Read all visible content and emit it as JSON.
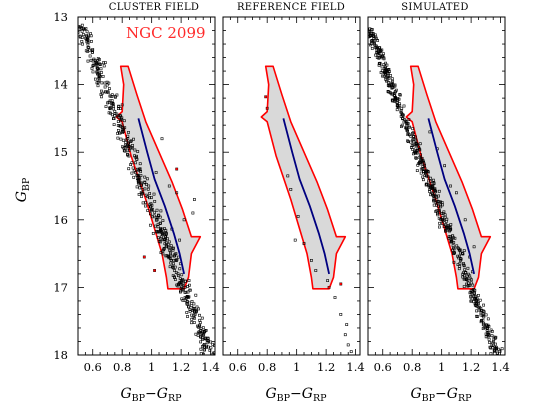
{
  "chart_data": {
    "type": "scatter",
    "ylabel": "G_BP",
    "xlabel": "G_BP−G_RP",
    "xlim": [
      0.5,
      1.43
    ],
    "ylim": [
      18.0,
      13.0
    ],
    "y_inverted": true,
    "xticks": [
      "0.6",
      "0.8",
      "1",
      "1.2",
      "1.4"
    ],
    "yticks": [
      "13",
      "14",
      "15",
      "16",
      "17",
      "18"
    ],
    "annotation": "NGC 2099",
    "region_color": "#ff0000",
    "region_fill": "#d9d9d9",
    "ridge_color": "#000080",
    "points_color": "#000000",
    "red_points_color": "#ff0000",
    "ms_ridge_line": [
      {
        "x": 0.91,
        "y": 14.5
      },
      {
        "x": 0.97,
        "y": 15.0
      },
      {
        "x": 1.02,
        "y": 15.4
      },
      {
        "x": 1.09,
        "y": 15.8
      },
      {
        "x": 1.15,
        "y": 16.2
      },
      {
        "x": 1.19,
        "y": 16.5
      },
      {
        "x": 1.22,
        "y": 16.8
      }
    ],
    "selection_polygon": [
      {
        "x": 0.79,
        "y": 13.73
      },
      {
        "x": 0.84,
        "y": 13.73
      },
      {
        "x": 0.9,
        "y": 14.15
      },
      {
        "x": 0.96,
        "y": 14.55
      },
      {
        "x": 1.06,
        "y": 15.05
      },
      {
        "x": 1.14,
        "y": 15.45
      },
      {
        "x": 1.21,
        "y": 15.85
      },
      {
        "x": 1.27,
        "y": 16.25
      },
      {
        "x": 1.33,
        "y": 16.25
      },
      {
        "x": 1.27,
        "y": 16.5
      },
      {
        "x": 1.25,
        "y": 16.85
      },
      {
        "x": 1.22,
        "y": 17.02
      },
      {
        "x": 1.11,
        "y": 17.02
      },
      {
        "x": 1.1,
        "y": 16.85
      },
      {
        "x": 1.07,
        "y": 16.5
      },
      {
        "x": 0.96,
        "y": 15.7
      },
      {
        "x": 0.86,
        "y": 15.05
      },
      {
        "x": 0.8,
        "y": 14.55
      },
      {
        "x": 0.76,
        "y": 14.48
      },
      {
        "x": 0.8,
        "y": 14.4
      },
      {
        "x": 0.81,
        "y": 14.0
      }
    ],
    "panels": [
      {
        "title": "CLUSTER FIELD",
        "show_ylabel": true,
        "show_annotation": true,
        "sequence": {
          "x0": 0.51,
          "y0": 13.1,
          "x1": 1.4,
          "y1": 18.0,
          "count": 520,
          "scatter": 0.035
        },
        "extra_points": [
          {
            "x": 0.8,
            "y": 14.3
          },
          {
            "x": 0.87,
            "y": 14.9
          },
          {
            "x": 1.03,
            "y": 15.3
          },
          {
            "x": 1.07,
            "y": 14.8
          },
          {
            "x": 1.12,
            "y": 15.5
          },
          {
            "x": 1.17,
            "y": 15.6
          },
          {
            "x": 1.22,
            "y": 16.0
          },
          {
            "x": 1.28,
            "y": 15.9
          },
          {
            "x": 1.1,
            "y": 16.2
          },
          {
            "x": 0.98,
            "y": 15.5
          },
          {
            "x": 1.19,
            "y": 16.3
          },
          {
            "x": 1.29,
            "y": 15.7
          }
        ],
        "red_points": [
          {
            "x": 1.02,
            "y": 16.75
          },
          {
            "x": 1.17,
            "y": 15.25
          },
          {
            "x": 0.95,
            "y": 16.55
          }
        ]
      },
      {
        "title": "REFERENCE FIELD",
        "show_ylabel": false,
        "show_annotation": false,
        "sequence": {
          "x0": 0.8,
          "y0": 14.2,
          "x1": 1.4,
          "y1": 18.0,
          "count": 0,
          "scatter": 0.0
        },
        "extra_points": [
          {
            "x": 0.94,
            "y": 15.35
          },
          {
            "x": 0.96,
            "y": 15.55
          },
          {
            "x": 1.01,
            "y": 15.95
          },
          {
            "x": 1.05,
            "y": 16.35
          },
          {
            "x": 1.13,
            "y": 16.75
          },
          {
            "x": 1.26,
            "y": 17.15
          },
          {
            "x": 1.3,
            "y": 17.4
          },
          {
            "x": 1.33,
            "y": 17.7
          },
          {
            "x": 1.35,
            "y": 17.85
          },
          {
            "x": 1.37,
            "y": 17.95
          },
          {
            "x": 1.1,
            "y": 16.6
          },
          {
            "x": 1.21,
            "y": 16.9
          },
          {
            "x": 0.99,
            "y": 16.3
          },
          {
            "x": 1.34,
            "y": 17.55
          }
        ],
        "red_points": [
          {
            "x": 0.79,
            "y": 14.18
          },
          {
            "x": 0.8,
            "y": 14.35
          },
          {
            "x": 1.22,
            "y": 17.0
          },
          {
            "x": 1.3,
            "y": 16.95
          }
        ]
      },
      {
        "title": "SIMULATED",
        "show_ylabel": false,
        "show_annotation": false,
        "sequence": {
          "x0": 0.5,
          "y0": 13.15,
          "x1": 1.38,
          "y1": 18.0,
          "count": 560,
          "scatter": 0.025
        },
        "extra_points": [
          {
            "x": 0.92,
            "y": 14.7
          },
          {
            "x": 1.02,
            "y": 15.2
          },
          {
            "x": 1.1,
            "y": 15.6
          },
          {
            "x": 1.16,
            "y": 16.0
          },
          {
            "x": 1.22,
            "y": 16.4
          },
          {
            "x": 1.06,
            "y": 15.5
          },
          {
            "x": 1.19,
            "y": 16.55
          },
          {
            "x": 0.97,
            "y": 14.95
          }
        ],
        "red_points": []
      }
    ]
  }
}
